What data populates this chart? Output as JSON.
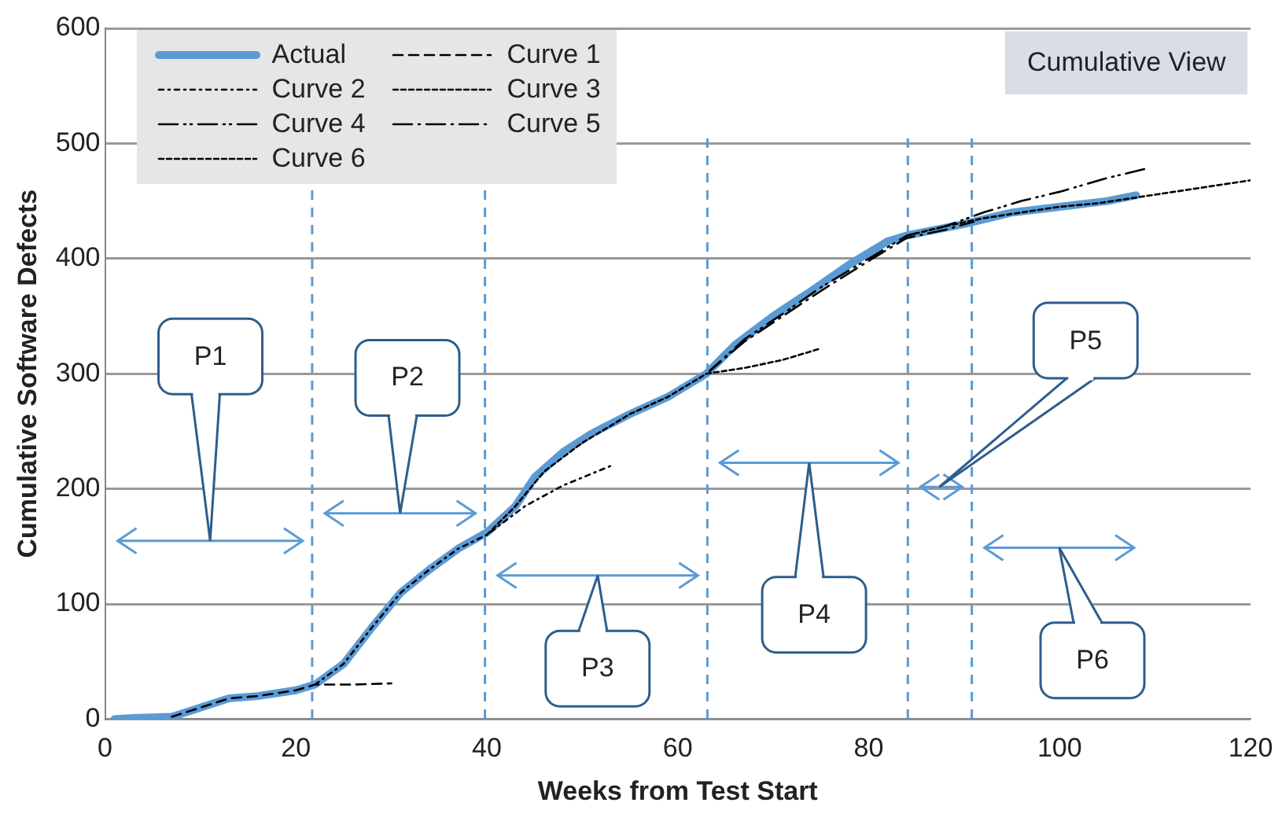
{
  "chart_data": {
    "type": "line",
    "xlabel": "Weeks from Test Start",
    "ylabel": "Cumulative Software Defects",
    "xlim": [
      0,
      120
    ],
    "xticks": [
      0,
      20,
      40,
      60,
      80,
      100,
      120
    ],
    "ylim": [
      0,
      600
    ],
    "yticks": [
      0,
      100,
      200,
      300,
      400,
      500,
      600
    ],
    "grid": "y",
    "legend": "top left",
    "marker": "none",
    "series": [
      {
        "name": "Actual",
        "color": "#5b9bd5",
        "line_style": "solid",
        "x": [
          1,
          3,
          7,
          10,
          13,
          16,
          20,
          22,
          25,
          28,
          31,
          34,
          37,
          40,
          43,
          45,
          48,
          51,
          55,
          59,
          63,
          66,
          70,
          74,
          78,
          82,
          84,
          87,
          90,
          95,
          100,
          105,
          108
        ],
        "values": [
          0,
          1,
          2,
          10,
          18,
          20,
          25,
          30,
          48,
          80,
          110,
          130,
          148,
          162,
          185,
          210,
          232,
          248,
          265,
          280,
          300,
          325,
          350,
          372,
          395,
          415,
          420,
          425,
          430,
          440,
          445,
          450,
          455
        ]
      },
      {
        "name": "Curve 1",
        "color": "#000000",
        "line_style": "dashed",
        "x": [
          7,
          10,
          13,
          16,
          20,
          22,
          26,
          30
        ],
        "values": [
          2,
          10,
          18,
          20,
          25,
          30,
          30,
          31
        ]
      },
      {
        "name": "Curve 2",
        "color": "#000000",
        "line_style": "dashed",
        "x": [
          22,
          25,
          28,
          31,
          34,
          37,
          40,
          44,
          48,
          53
        ],
        "values": [
          30,
          48,
          80,
          110,
          130,
          148,
          160,
          185,
          203,
          220
        ]
      },
      {
        "name": "Curve 3",
        "color": "#000000",
        "line_style": "dashed",
        "x": [
          40,
          43,
          46,
          50,
          55,
          59,
          63,
          67,
          71,
          75
        ],
        "values": [
          160,
          185,
          215,
          240,
          265,
          280,
          300,
          305,
          312,
          322
        ]
      },
      {
        "name": "Curve 4",
        "color": "#000000",
        "line_style": "dashed",
        "x": [
          63,
          67,
          71,
          75,
          80,
          84,
          88,
          92,
          96,
          100,
          105,
          109
        ],
        "values": [
          300,
          330,
          352,
          375,
          400,
          420,
          428,
          440,
          450,
          458,
          470,
          478
        ]
      },
      {
        "name": "Curve 5",
        "color": "#000000",
        "line_style": "dashed",
        "x": [
          63,
          67,
          71,
          75,
          80,
          84,
          88,
          91
        ],
        "values": [
          300,
          328,
          350,
          372,
          398,
          418,
          425,
          432
        ]
      },
      {
        "name": "Curve 6",
        "color": "#000000",
        "line_style": "dashed",
        "x": [
          84,
          88,
          92,
          96,
          100,
          104,
          108,
          112,
          116,
          120
        ],
        "values": [
          420,
          428,
          435,
          440,
          445,
          448,
          453,
          458,
          463,
          468
        ]
      }
    ],
    "ref_lines": [
      {
        "axis": "x",
        "value": 21.7,
        "color": "#5b9bd5",
        "line_style": "dashed"
      },
      {
        "axis": "x",
        "value": 39.8,
        "color": "#5b9bd5",
        "line_style": "dashed"
      },
      {
        "axis": "x",
        "value": 63.1,
        "color": "#5b9bd5",
        "line_style": "dashed"
      },
      {
        "axis": "x",
        "value": 84.1,
        "color": "#5b9bd5",
        "line_style": "dashed"
      },
      {
        "axis": "x",
        "value": 90.8,
        "color": "#5b9bd5",
        "line_style": "dashed"
      }
    ],
    "annotations": [
      "Cumulative View",
      "P1",
      "P2",
      "P3",
      "P4",
      "P5",
      "P6"
    ]
  }
}
